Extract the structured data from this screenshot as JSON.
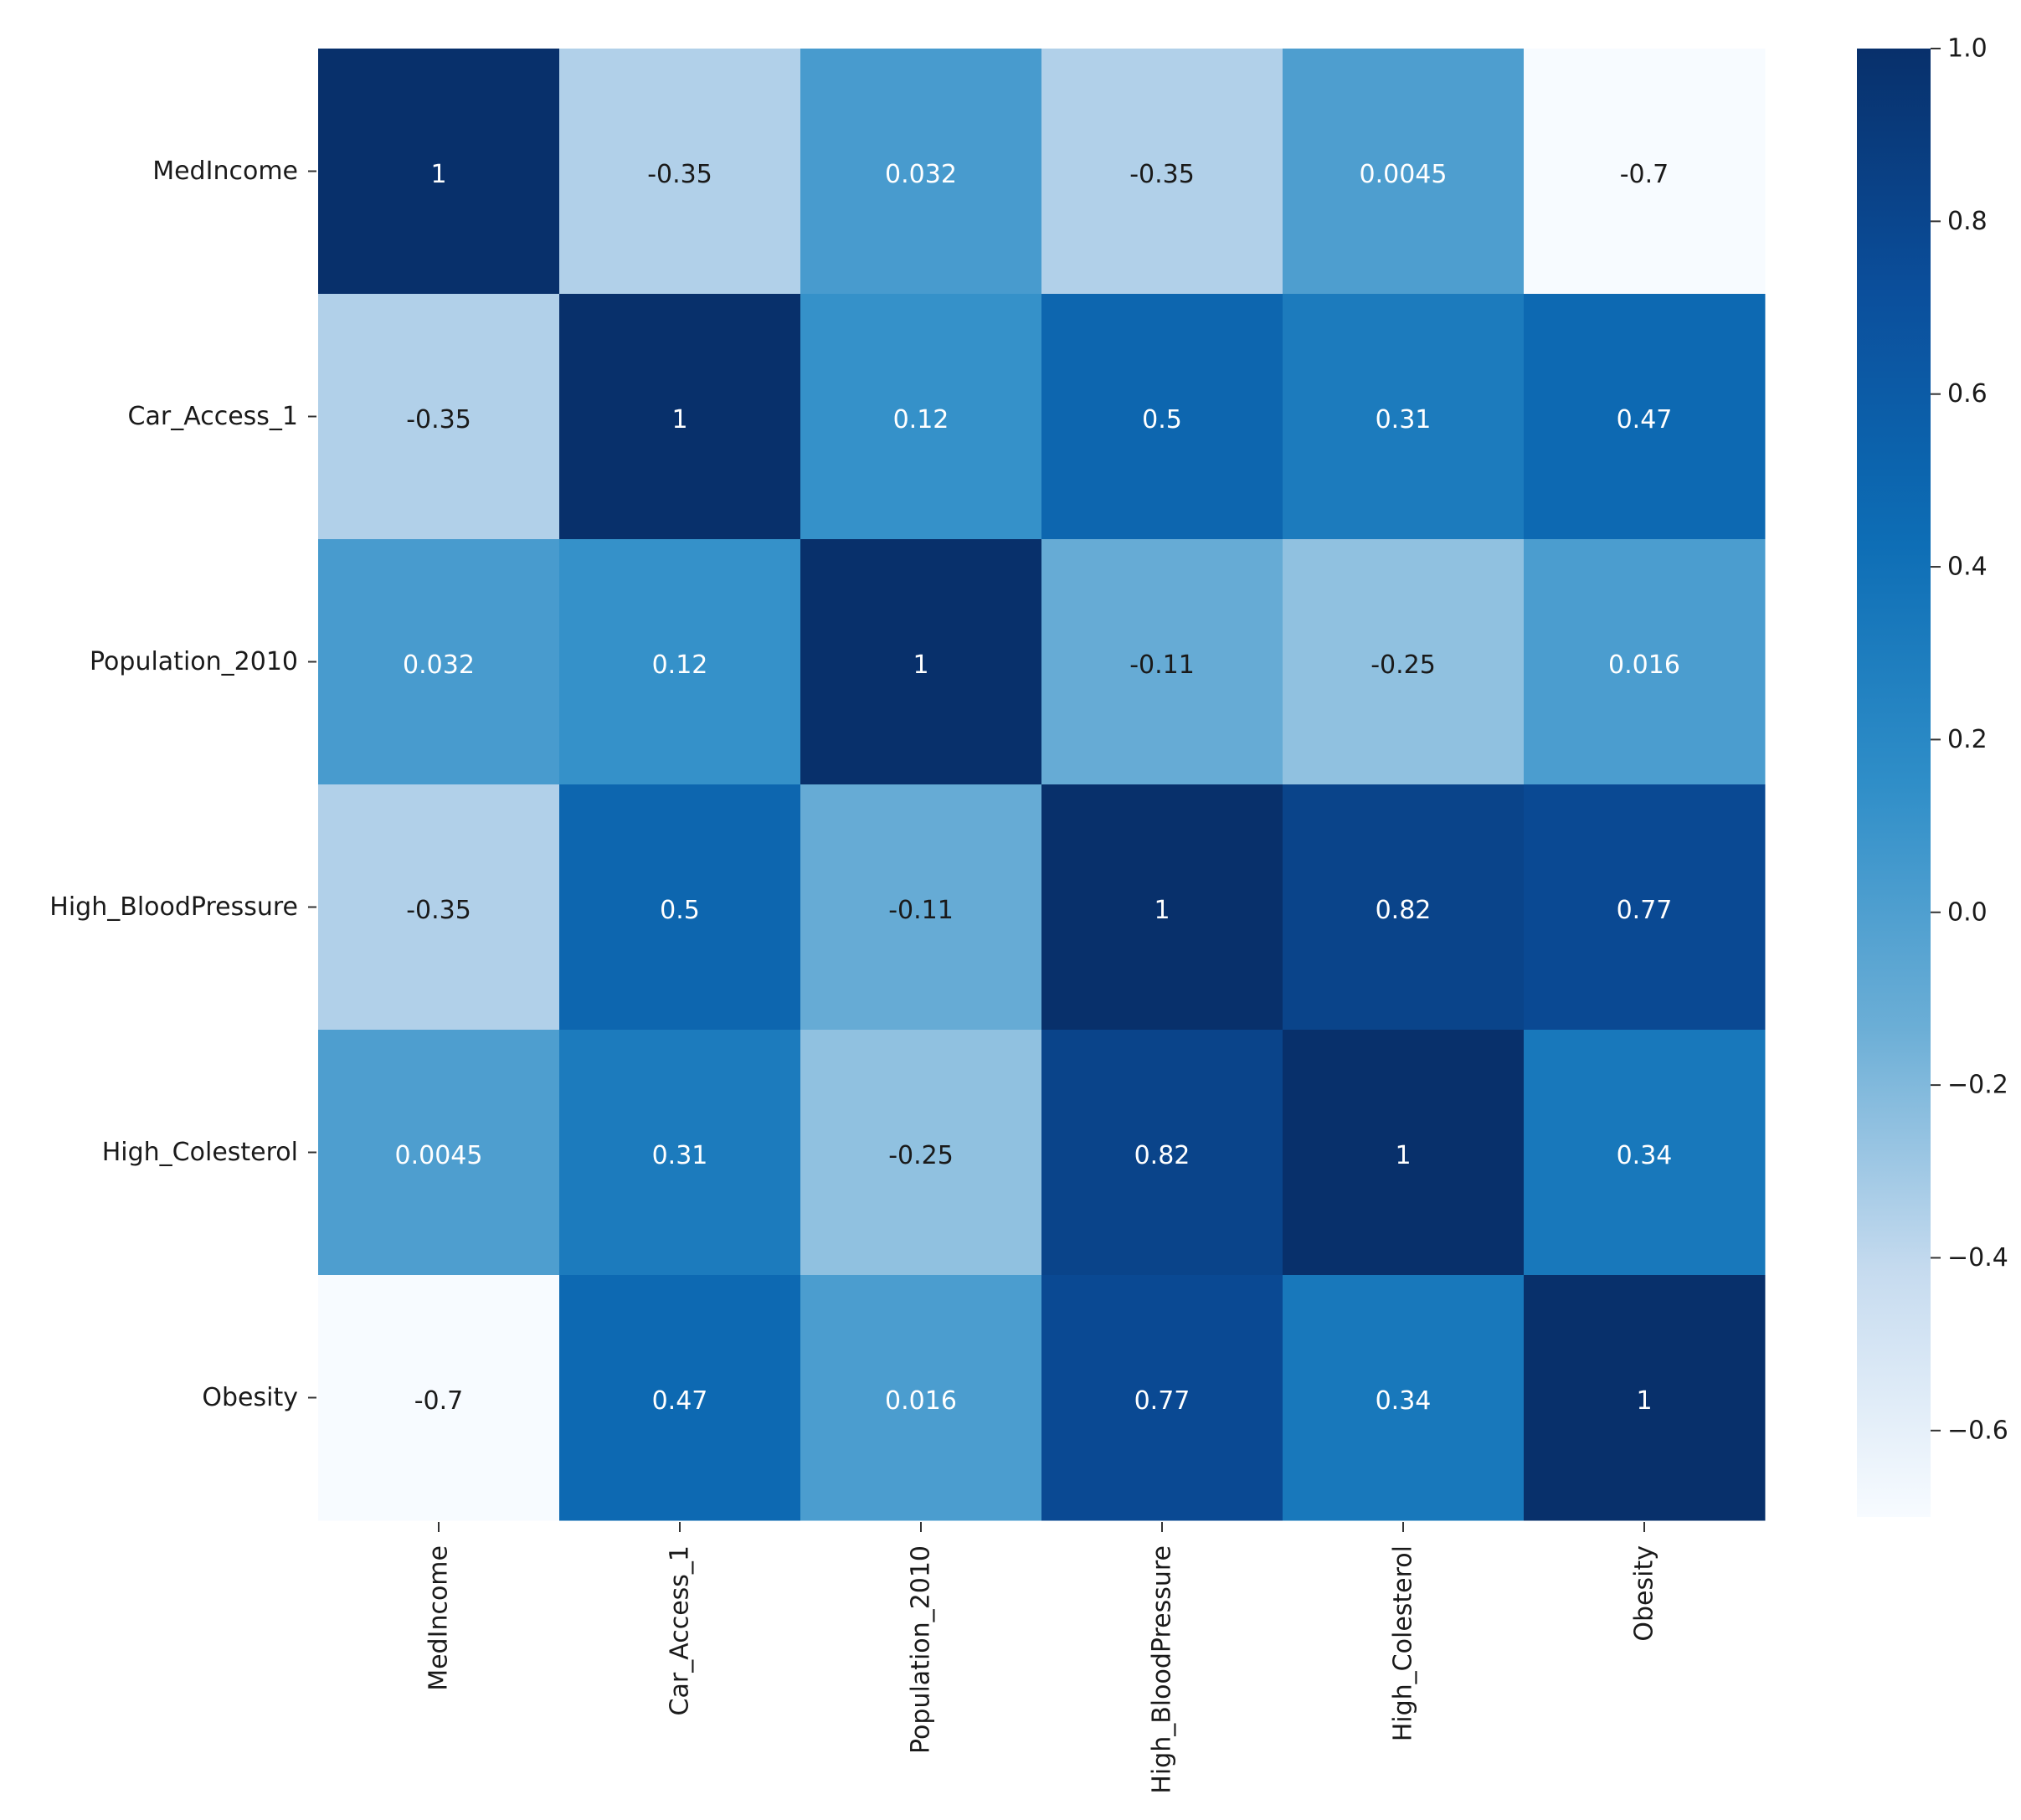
{
  "chart_data": {
    "type": "heatmap",
    "title": "",
    "xlabel": "",
    "ylabel": "",
    "rows": [
      "MedIncome",
      "Car_Access_1",
      "Population_2010",
      "High_BloodPressure",
      "High_Colesterol",
      "Obesity"
    ],
    "cols": [
      "MedIncome",
      "Car_Access_1",
      "Population_2010",
      "High_BloodPressure",
      "High_Colesterol",
      "Obesity"
    ],
    "values": [
      [
        1,
        -0.35,
        0.032,
        -0.35,
        0.0045,
        -0.7
      ],
      [
        -0.35,
        1,
        0.12,
        0.5,
        0.31,
        0.47
      ],
      [
        0.032,
        0.12,
        1,
        -0.11,
        -0.25,
        0.016
      ],
      [
        -0.35,
        0.5,
        -0.11,
        1,
        0.82,
        0.77
      ],
      [
        0.0045,
        0.31,
        -0.25,
        0.82,
        1,
        0.34
      ],
      [
        -0.7,
        0.47,
        0.016,
        0.77,
        0.34,
        1
      ]
    ],
    "cell_labels": [
      [
        "1",
        "-0.35",
        "0.032",
        "-0.35",
        "0.0045",
        "-0.7"
      ],
      [
        "-0.35",
        "1",
        "0.12",
        "0.5",
        "0.31",
        "0.47"
      ],
      [
        "0.032",
        "0.12",
        "1",
        "-0.11",
        "-0.25",
        "0.016"
      ],
      [
        "-0.35",
        "0.5",
        "-0.11",
        "1",
        "0.82",
        "0.77"
      ],
      [
        "0.0045",
        "0.31",
        "-0.25",
        "0.82",
        "1",
        "0.34"
      ],
      [
        "-0.7",
        "0.47",
        "0.016",
        "0.77",
        "0.34",
        "1"
      ]
    ],
    "colorbar": {
      "range": [
        -0.7,
        1.0
      ],
      "ticks": [
        1.0,
        0.8,
        0.6,
        0.4,
        0.2,
        0.0,
        -0.2,
        -0.4,
        -0.6
      ],
      "tick_labels": [
        "1.0",
        "0.8",
        "0.6",
        "0.4",
        "0.2",
        "0.0",
        "−0.2",
        "−0.4",
        "−0.6"
      ],
      "colormap": [
        "#f7fbff",
        "#c6dbef",
        "#6baed6",
        "#2f8ec8",
        "#0d6db5",
        "#0b4f9c",
        "#08306b"
      ],
      "placement": "right"
    },
    "grid": false,
    "light_text_color": "#ffffff",
    "dark_text_color": "#1a1a1a"
  }
}
